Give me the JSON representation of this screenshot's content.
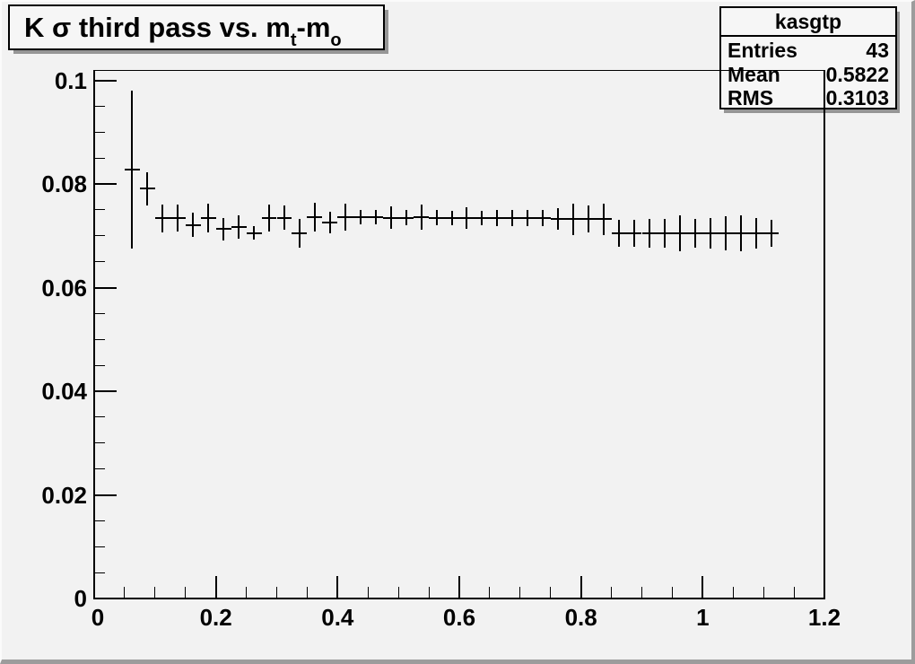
{
  "colors": {
    "canvas_background": "#f2f2f2",
    "window_bevel": "#9c9c9c",
    "line_color": "#000000",
    "box_background": "#f6f6f6",
    "box_shadow": "#969696"
  },
  "title_box": {
    "part1": "K σ third pass vs. m",
    "sub1": "t",
    "part2": "-m",
    "sub2": "o"
  },
  "stats_box": {
    "title": "kasgtp",
    "rows": [
      {
        "label": "Entries",
        "value": "43"
      },
      {
        "label": "Mean",
        "value": "0.5822"
      },
      {
        "label": "RMS",
        "value": "0.3103"
      }
    ]
  },
  "chart_data": {
    "type": "scatter",
    "title": "K σ third pass vs. m_t-m_o",
    "xlabel": "",
    "ylabel": "",
    "xlim": [
      0,
      1.2
    ],
    "ylim": [
      0,
      0.102
    ],
    "grid": false,
    "legend": "none (stats box top-right)",
    "x_major_ticks": [
      0,
      0.2,
      0.4,
      0.6,
      0.8,
      1.0,
      1.2
    ],
    "x_tick_labels": [
      "0",
      "0.2",
      "0.4",
      "0.6",
      "0.8",
      "1",
      "1.2"
    ],
    "x_minor_step": 0.05,
    "y_major_ticks": [
      0,
      0.02,
      0.04,
      0.06,
      0.08,
      0.1
    ],
    "y_tick_labels": [
      "0",
      "0.02",
      "0.04",
      "0.06",
      "0.08",
      "0.1"
    ],
    "y_minor_step": 0.005,
    "marker": "cross-error-bars",
    "bin_half_width": 0.0125,
    "point_format": [
      "x",
      "y",
      "y_error"
    ],
    "series": [
      {
        "name": "kasgtp",
        "points": [
          [
            0.0625,
            0.0828,
            0.0152
          ],
          [
            0.0875,
            0.0791,
            0.0032
          ],
          [
            0.1125,
            0.0734,
            0.0027
          ],
          [
            0.1375,
            0.0734,
            0.0026
          ],
          [
            0.1625,
            0.0721,
            0.0023
          ],
          [
            0.1875,
            0.0734,
            0.0028
          ],
          [
            0.2125,
            0.0713,
            0.0022
          ],
          [
            0.2375,
            0.0717,
            0.0022
          ],
          [
            0.2625,
            0.0705,
            0.0013
          ],
          [
            0.2875,
            0.0735,
            0.0026
          ],
          [
            0.3125,
            0.0735,
            0.0023
          ],
          [
            0.3375,
            0.0705,
            0.0028
          ],
          [
            0.3625,
            0.0736,
            0.0028
          ],
          [
            0.3875,
            0.0726,
            0.0021
          ],
          [
            0.4125,
            0.0736,
            0.0026
          ],
          [
            0.4375,
            0.0736,
            0.0014
          ],
          [
            0.4625,
            0.0736,
            0.0014
          ],
          [
            0.4875,
            0.0735,
            0.0022
          ],
          [
            0.5125,
            0.0735,
            0.0014
          ],
          [
            0.5375,
            0.0736,
            0.0024
          ],
          [
            0.5625,
            0.0735,
            0.0014
          ],
          [
            0.5875,
            0.0734,
            0.0014
          ],
          [
            0.6125,
            0.0734,
            0.0021
          ],
          [
            0.6375,
            0.0734,
            0.0014
          ],
          [
            0.6625,
            0.0734,
            0.0016
          ],
          [
            0.6875,
            0.0734,
            0.0016
          ],
          [
            0.7125,
            0.0734,
            0.0016
          ],
          [
            0.7375,
            0.0734,
            0.0016
          ],
          [
            0.7625,
            0.0733,
            0.0021
          ],
          [
            0.7875,
            0.0732,
            0.003
          ],
          [
            0.8125,
            0.0732,
            0.0026
          ],
          [
            0.8375,
            0.0732,
            0.003
          ],
          [
            0.8625,
            0.0704,
            0.0026
          ],
          [
            0.8875,
            0.0704,
            0.0026
          ],
          [
            0.9125,
            0.0705,
            0.0028
          ],
          [
            0.9375,
            0.0705,
            0.0028
          ],
          [
            0.9625,
            0.0705,
            0.0035
          ],
          [
            0.9875,
            0.0705,
            0.0028
          ],
          [
            1.0125,
            0.0705,
            0.003
          ],
          [
            1.0375,
            0.0705,
            0.0033
          ],
          [
            1.0625,
            0.0705,
            0.0035
          ],
          [
            1.0875,
            0.0705,
            0.003
          ],
          [
            1.1125,
            0.0705,
            0.0026
          ]
        ]
      }
    ]
  }
}
